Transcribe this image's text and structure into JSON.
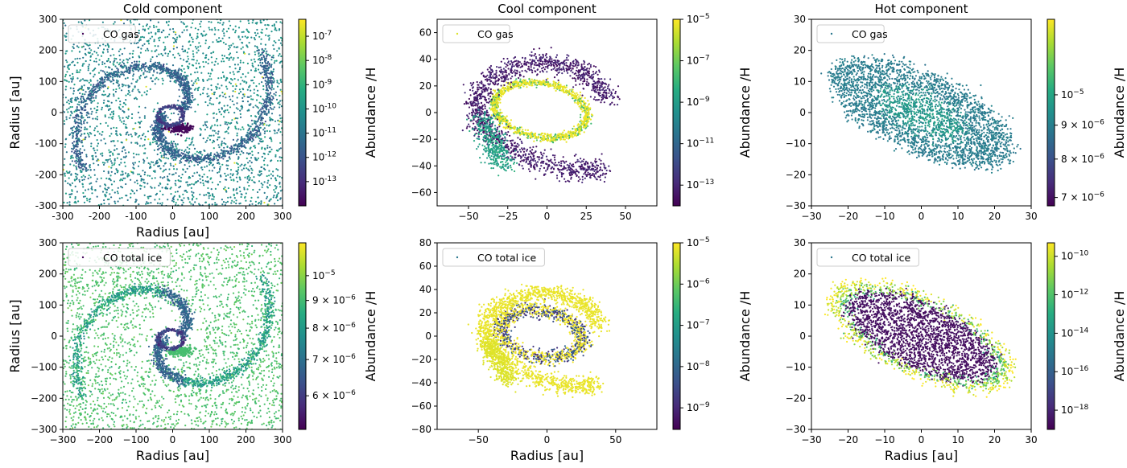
{
  "colors": {
    "viridis": [
      "#440154",
      "#472c7a",
      "#3b518b",
      "#2c718e",
      "#21908d",
      "#27ad81",
      "#5cc863",
      "#aadc32",
      "#fde725"
    ]
  },
  "chart_data": [
    {
      "type": "scatter",
      "title": "Cold component",
      "legend": "CO gas",
      "legend_position": "top-left",
      "xlabel": "Radius [au]",
      "ylabel": "Radius [au]",
      "xlim": [
        -300,
        300
      ],
      "ylim": [
        -300,
        300
      ],
      "xticks": [
        "-300",
        "-200",
        "-100",
        "0",
        "100",
        "200",
        "300"
      ],
      "yticks": [
        "-300",
        "-200",
        "-100",
        "0",
        "100",
        "200",
        "300"
      ],
      "colorbar": {
        "label": "Abundance /H",
        "scale": "log",
        "range": [
          1e-14,
          5e-07
        ],
        "ticks": [
          {
            "value": 1e-13,
            "base": "10",
            "exp": "-13"
          },
          {
            "value": 1e-12,
            "base": "10",
            "exp": "-12"
          },
          {
            "value": 1e-11,
            "base": "10",
            "exp": "-11"
          },
          {
            "value": 1e-10,
            "base": "10",
            "exp": "-10"
          },
          {
            "value": 1e-09,
            "base": "10",
            "exp": "-9"
          },
          {
            "value": 1e-08,
            "base": "10",
            "exp": "-8"
          },
          {
            "value": 1e-07,
            "base": "10",
            "exp": "-7"
          }
        ]
      },
      "structure": {
        "kind": "cold",
        "r_outer": 300,
        "ring_radius": 110
      }
    },
    {
      "type": "scatter",
      "title": "Cool component",
      "legend": "CO gas",
      "legend_position": "top-left",
      "xlabel": "",
      "ylabel": "",
      "xlim": [
        -70,
        70
      ],
      "ylim": [
        -70,
        70
      ],
      "xticks": [
        "−50",
        "−25",
        "0",
        "25",
        "50"
      ],
      "yticks": [
        "−60",
        "−40",
        "−20",
        "0",
        "20",
        "40",
        "60"
      ],
      "colorbar": {
        "label": "Abundance /H",
        "scale": "log",
        "range": [
          1e-14,
          1e-05
        ],
        "ticks": [
          {
            "value": 1e-13,
            "base": "10",
            "exp": "−13"
          },
          {
            "value": 1e-11,
            "base": "10",
            "exp": "−11"
          },
          {
            "value": 1e-09,
            "base": "10",
            "exp": "−9"
          },
          {
            "value": 1e-07,
            "base": "10",
            "exp": "−7"
          },
          {
            "value": 1e-05,
            "base": "10",
            "exp": "−5"
          }
        ]
      },
      "structure": {
        "kind": "cool",
        "inner_a": 30,
        "inner_b": 20,
        "tilt_deg": -15
      }
    },
    {
      "type": "scatter",
      "title": "Hot component",
      "legend": "CO gas",
      "legend_position": "top-left",
      "xlabel": "",
      "ylabel": "",
      "xlim": [
        -30,
        30
      ],
      "ylim": [
        -30,
        30
      ],
      "xticks": [
        "−30",
        "−20",
        "−10",
        "0",
        "10",
        "20",
        "30"
      ],
      "yticks": [
        "−30",
        "−20",
        "−10",
        "0",
        "10",
        "20",
        "30"
      ],
      "colorbar": {
        "label": "Abundance /H",
        "scale": "log",
        "range": [
          6.8e-06,
          1.3e-05
        ],
        "ticks": [
          {
            "value": 7e-06,
            "base": "7 × 10",
            "exp": "−6"
          },
          {
            "value": 8e-06,
            "base": "8 × 10",
            "exp": "−6"
          },
          {
            "value": 9e-06,
            "base": "9 × 10",
            "exp": "−6"
          },
          {
            "value": 1e-05,
            "base": "10",
            "exp": "−5"
          }
        ]
      },
      "structure": {
        "kind": "hot",
        "a": 28,
        "b": 12,
        "tilt_deg": -30
      }
    },
    {
      "type": "scatter",
      "title": "",
      "legend": "CO total ice",
      "legend_position": "top-left",
      "xlabel": "Radius [au]",
      "ylabel": "Radius [au]",
      "xlim": [
        -300,
        300
      ],
      "ylim": [
        -300,
        300
      ],
      "xticks": [
        "−300",
        "−200",
        "−100",
        "0",
        "100",
        "200",
        "300"
      ],
      "yticks": [
        "−300",
        "−200",
        "−100",
        "0",
        "100",
        "200",
        "300"
      ],
      "colorbar": {
        "label": "Abundance /H",
        "scale": "log",
        "range": [
          5.2e-06,
          1.15e-05
        ],
        "ticks": [
          {
            "value": 6e-06,
            "base": "6 × 10",
            "exp": "−6"
          },
          {
            "value": 7e-06,
            "base": "7 × 10",
            "exp": "−6"
          },
          {
            "value": 8e-06,
            "base": "8 × 10",
            "exp": "−6"
          },
          {
            "value": 9e-06,
            "base": "9 × 10",
            "exp": "−6"
          },
          {
            "value": 1e-05,
            "base": "10",
            "exp": "−5"
          }
        ]
      },
      "structure": {
        "kind": "cold_ice",
        "r_outer": 300,
        "ring_radius": 110
      }
    },
    {
      "type": "scatter",
      "title": "",
      "legend": "CO total ice",
      "legend_position": "top-left",
      "xlabel": "Radius [au]",
      "ylabel": "",
      "xlim": [
        -80,
        80
      ],
      "ylim": [
        -80,
        80
      ],
      "xticks": [
        "−50",
        "0",
        "50"
      ],
      "yticks": [
        "−80",
        "−60",
        "−40",
        "−20",
        "0",
        "20",
        "40",
        "60",
        "80"
      ],
      "colorbar": {
        "label": "Abundance /H",
        "scale": "log",
        "range": [
          3e-10,
          1e-05
        ],
        "ticks": [
          {
            "value": 1e-09,
            "base": "10",
            "exp": "−9"
          },
          {
            "value": 1e-08,
            "base": "10",
            "exp": "−8"
          },
          {
            "value": 1e-07,
            "base": "10",
            "exp": "−7"
          },
          {
            "value": 1e-06,
            "base": "10",
            "exp": "−6"
          },
          {
            "value": 1e-05,
            "base": "10",
            "exp": "−5"
          }
        ]
      },
      "structure": {
        "kind": "cool_ice",
        "inner_a": 30,
        "inner_b": 20,
        "tilt_deg": -15
      }
    },
    {
      "type": "scatter",
      "title": "",
      "legend": "CO total ice",
      "legend_position": "top-left",
      "xlabel": "Radius [au]",
      "ylabel": "",
      "xlim": [
        -30,
        30
      ],
      "ylim": [
        -30,
        30
      ],
      "xticks": [
        "−30",
        "−20",
        "−10",
        "0",
        "10",
        "20",
        "30"
      ],
      "yticks": [
        "−30",
        "−20",
        "−10",
        "0",
        "10",
        "20",
        "30"
      ],
      "colorbar": {
        "label": "Abundance /H",
        "scale": "log",
        "range": [
          1e-19,
          5e-10
        ],
        "ticks": [
          {
            "value": 1e-18,
            "base": "10",
            "exp": "−18"
          },
          {
            "value": 1e-16,
            "base": "10",
            "exp": "−16"
          },
          {
            "value": 1e-14,
            "base": "10",
            "exp": "−14"
          },
          {
            "value": 1e-12,
            "base": "10",
            "exp": "−12"
          },
          {
            "value": 1e-10,
            "base": "10",
            "exp": "−10"
          }
        ]
      },
      "structure": {
        "kind": "hot_ice",
        "a": 28,
        "b": 12,
        "tilt_deg": -30
      }
    }
  ]
}
